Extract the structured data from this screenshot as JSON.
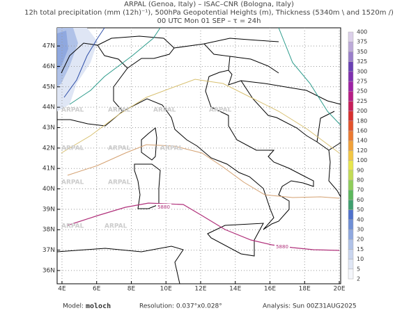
{
  "map": {
    "title_lines": [
      "ARPAL (Genoa, Italy)  –  ISAC–CNR (Bologna, Italy)",
      "12h total precipitation (mm (12h)⁻¹), 500hPa Geopotential Heights (m), Thickness (5340m \\ and 1520m /)",
      "00 UTC Mon 01 SEP  –  τ = 24h"
    ],
    "extent": {
      "lon": [
        3.72,
        20.08
      ],
      "lat": [
        35.35,
        47.89
      ]
    },
    "lon_ticks": [
      {
        "value": 4,
        "label": "4E"
      },
      {
        "value": 6,
        "label": "6E"
      },
      {
        "value": 8,
        "label": "8E"
      },
      {
        "value": 10,
        "label": "10E"
      },
      {
        "value": 12,
        "label": "12E"
      },
      {
        "value": 14,
        "label": "14E"
      },
      {
        "value": 16,
        "label": "16E"
      },
      {
        "value": 18,
        "label": "18E"
      },
      {
        "value": 20,
        "label": "20E"
      }
    ],
    "lat_ticks": [
      {
        "value": 36,
        "label": "36N"
      },
      {
        "value": 37,
        "label": "37N"
      },
      {
        "value": 38,
        "label": "38N"
      },
      {
        "value": 39,
        "label": "39N"
      },
      {
        "value": 40,
        "label": "40N"
      },
      {
        "value": 41,
        "label": "41N"
      },
      {
        "value": 42,
        "label": "42N"
      },
      {
        "value": 43,
        "label": "43N"
      },
      {
        "value": 44,
        "label": "44N"
      },
      {
        "value": 45,
        "label": "45N"
      },
      {
        "value": 46,
        "label": "46N"
      },
      {
        "value": 47,
        "label": "47N"
      }
    ],
    "colorbar": {
      "levels": [
        2,
        5,
        10,
        15,
        20,
        30,
        40,
        50,
        60,
        70,
        80,
        90,
        100,
        120,
        140,
        160,
        180,
        200,
        225,
        250,
        275,
        300,
        325,
        350,
        375,
        400
      ],
      "colors": [
        "#f4f6fb",
        "#dfe6f5",
        "#c9d5ef",
        "#b0c2e8",
        "#8fa8df",
        "#6f8fd6",
        "#4f72cc",
        "#3f9f6f",
        "#5cb85c",
        "#8fce5a",
        "#c3dc55",
        "#e8e64d",
        "#f3c744",
        "#f1a13a",
        "#ec7a32",
        "#e4532c",
        "#d83030",
        "#c81e5a",
        "#b81d86",
        "#9e22a6",
        "#8030b0",
        "#6a40b4",
        "#9a7ecb",
        "#bdaad9",
        "#dcd0ea"
      ]
    },
    "contour_label": "5880",
    "watermark": "ARPAL",
    "footer": {
      "model_label": "Model:",
      "model": "moloch",
      "resolution": "Resolution: 0.037°x0.028°",
      "analysis": "Analysis: Sun 00Z31AUG2025"
    }
  }
}
